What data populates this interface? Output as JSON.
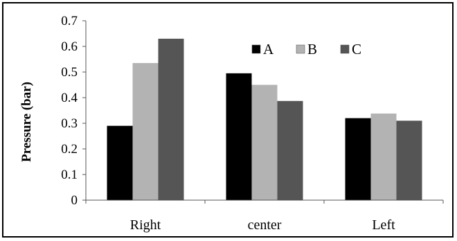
{
  "chart_data": {
    "type": "bar",
    "title": "",
    "xlabel": "",
    "ylabel": "Pressure (bar)",
    "ylim": [
      0,
      0.7
    ],
    "yticks": [
      "0",
      "0.1",
      "0.2",
      "0.3",
      "0.4",
      "0.5",
      "0.6",
      "0.7"
    ],
    "categories": [
      "Right",
      "center",
      "Left"
    ],
    "series": [
      {
        "name": "A",
        "color": "#000000",
        "values": [
          0.29,
          0.495,
          0.32
        ]
      },
      {
        "name": "B",
        "color": "#b3b3b3",
        "values": [
          0.535,
          0.45,
          0.338
        ]
      },
      {
        "name": "C",
        "color": "#555555",
        "values": [
          0.63,
          0.387,
          0.31
        ]
      }
    ],
    "legend": "top-center",
    "grid": false
  }
}
